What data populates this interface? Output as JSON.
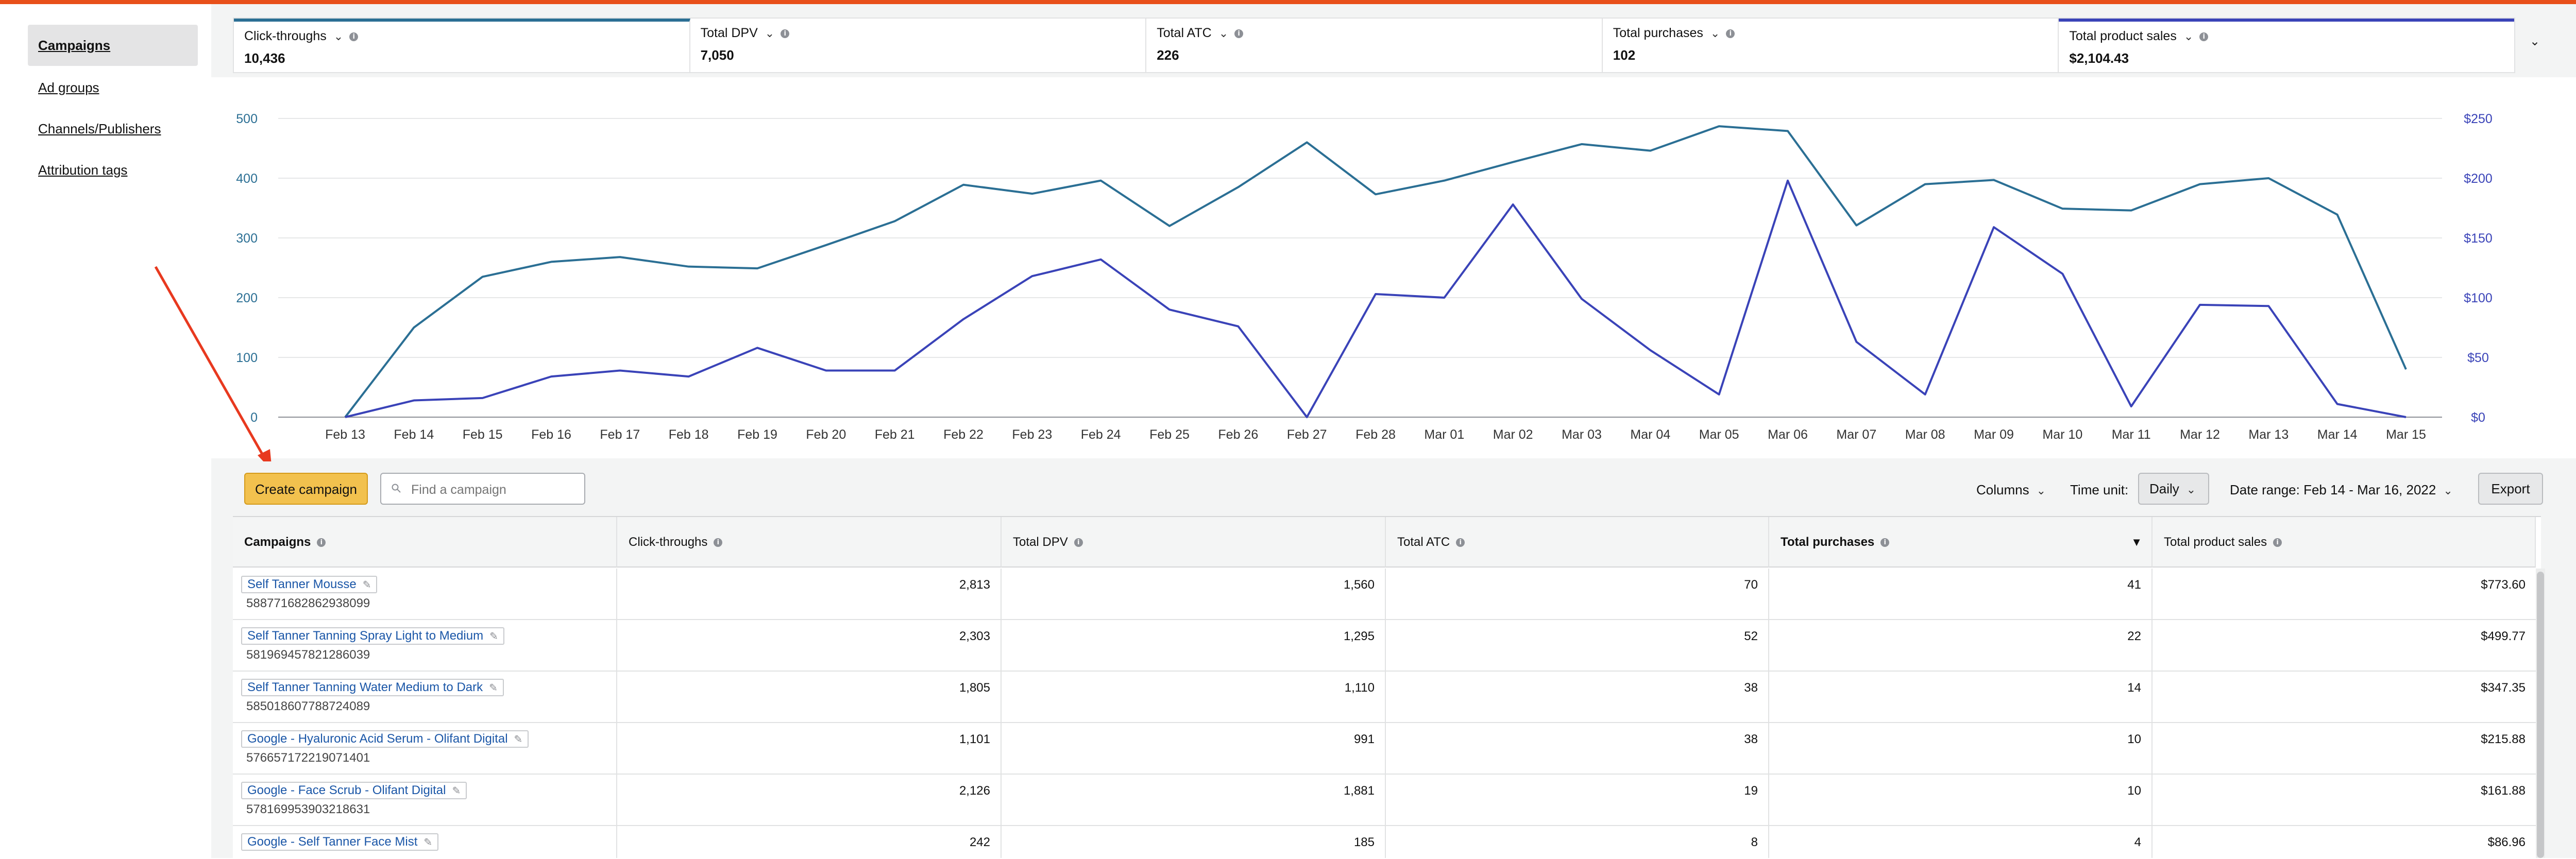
{
  "sidebar": {
    "items": [
      {
        "label": "Campaigns",
        "active": true
      },
      {
        "label": "Ad groups",
        "active": false
      },
      {
        "label": "Channels/Publishers",
        "active": false
      },
      {
        "label": "Attribution tags",
        "active": false
      }
    ]
  },
  "metrics": [
    {
      "label": "Click-throughs",
      "value": "10,436"
    },
    {
      "label": "Total DPV",
      "value": "7,050"
    },
    {
      "label": "Total ATC",
      "value": "226"
    },
    {
      "label": "Total purchases",
      "value": "102"
    },
    {
      "label": "Total product sales",
      "value": "$2,104.43"
    }
  ],
  "chart_data": {
    "type": "line",
    "x": [
      "Feb 13",
      "Feb 14",
      "Feb 15",
      "Feb 16",
      "Feb 17",
      "Feb 18",
      "Feb 19",
      "Feb 20",
      "Feb 21",
      "Feb 22",
      "Feb 23",
      "Feb 24",
      "Feb 25",
      "Feb 26",
      "Feb 27",
      "Feb 28",
      "Mar 01",
      "Mar 02",
      "Mar 03",
      "Mar 04",
      "Mar 05",
      "Mar 06",
      "Mar 07",
      "Mar 08",
      "Mar 09",
      "Mar 10",
      "Mar 11",
      "Mar 12",
      "Mar 13",
      "Mar 14",
      "Mar 15"
    ],
    "left_ticks": [
      "500",
      "400",
      "300",
      "200",
      "100",
      "0"
    ],
    "right_ticks": [
      "$250",
      "$200",
      "$150",
      "$100",
      "$50",
      "$0"
    ],
    "ylim_left": [
      0,
      500
    ],
    "ylim_right": [
      0,
      250
    ],
    "grid": true,
    "series": [
      {
        "axis": "left",
        "color": "#2b6f94",
        "values": [
          0,
          150,
          235,
          260,
          268,
          252,
          249,
          288,
          328,
          389,
          374,
          396,
          320,
          385,
          460,
          373,
          396,
          427,
          457,
          446,
          487,
          479,
          321,
          390,
          397,
          349,
          346,
          390,
          400,
          339,
          80
        ]
      },
      {
        "axis": "right",
        "color": "#3a43b8",
        "values": [
          0,
          14,
          16,
          34,
          39,
          34,
          58,
          39,
          39,
          82,
          118,
          132,
          90,
          76,
          0,
          103,
          100,
          178,
          99,
          56,
          19,
          198,
          63,
          19,
          159,
          120,
          9,
          94,
          93,
          11,
          0
        ]
      }
    ]
  },
  "toolbar": {
    "create_label": "Create campaign",
    "search_placeholder": "Find a campaign",
    "columns_label": "Columns",
    "time_unit_label": "Time unit:",
    "time_unit_value": "Daily",
    "date_range_label": "Date range: Feb 14 - Mar 16, 2022",
    "export_label": "Export"
  },
  "table": {
    "headers": [
      "Campaigns",
      "Click-throughs",
      "Total DPV",
      "Total ATC",
      "Total purchases",
      "Total product sales"
    ],
    "rows": [
      {
        "name": "Self Tanner Mousse",
        "id": "588771682862938099",
        "cells": [
          "2,813",
          "1,560",
          "70",
          "41",
          "$773.60"
        ]
      },
      {
        "name": "Self Tanner Tanning Spray Light to Medium",
        "id": "581969457821286039",
        "cells": [
          "2,303",
          "1,295",
          "52",
          "22",
          "$499.77"
        ]
      },
      {
        "name": "Self Tanner Tanning Water Medium to Dark",
        "id": "585018607788724089",
        "cells": [
          "1,805",
          "1,110",
          "38",
          "14",
          "$347.35"
        ]
      },
      {
        "name": "Google - Hyaluronic Acid Serum - Olifant Digital",
        "id": "576657172219071401",
        "cells": [
          "1,101",
          "991",
          "38",
          "10",
          "$215.88"
        ]
      },
      {
        "name": "Google - Face Scrub - Olifant Digital",
        "id": "578169953903218631",
        "cells": [
          "2,126",
          "1,881",
          "19",
          "10",
          "$161.88"
        ]
      },
      {
        "name": "Google - Self Tanner Face Mist",
        "id": "",
        "cells": [
          "242",
          "185",
          "8",
          "4",
          "$86.96"
        ]
      }
    ]
  }
}
